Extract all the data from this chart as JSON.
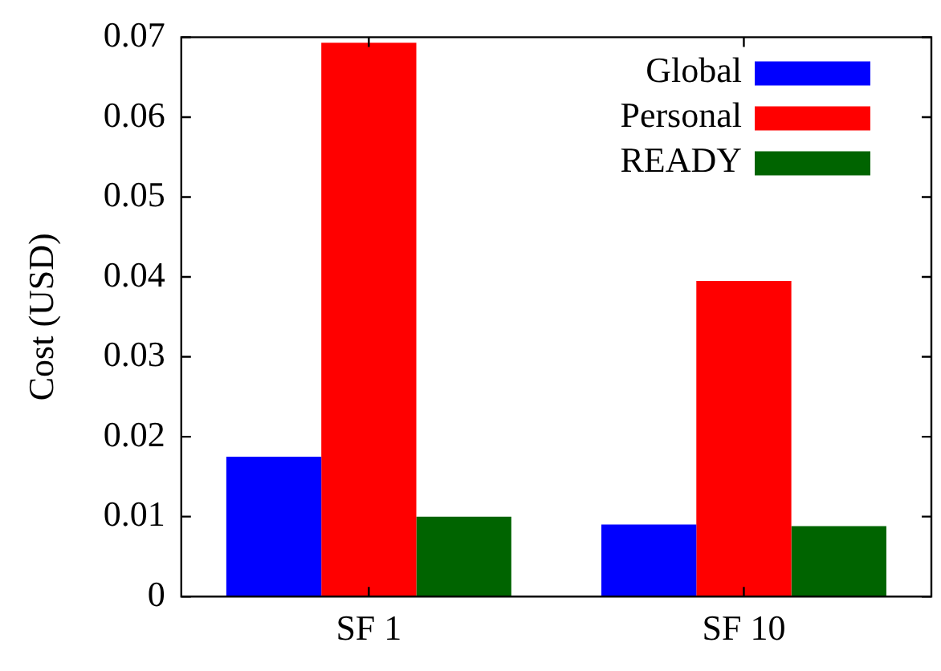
{
  "chart_data": {
    "type": "bar",
    "ylabel": "Cost (USD)",
    "categories": [
      "SF 1",
      "SF 10"
    ],
    "series": [
      {
        "name": "Global",
        "color": "#0000ff",
        "values": [
          0.0175,
          0.009
        ]
      },
      {
        "name": "Personal",
        "color": "#ff0000",
        "values": [
          0.0693,
          0.0395
        ]
      },
      {
        "name": "READY",
        "color": "#006400",
        "values": [
          0.01,
          0.0088
        ]
      }
    ],
    "ylim": [
      0,
      0.07
    ],
    "yticks": [
      0,
      0.01,
      0.02,
      0.03,
      0.04,
      0.05,
      0.06,
      0.07
    ],
    "grid": false,
    "legend": "top right"
  }
}
